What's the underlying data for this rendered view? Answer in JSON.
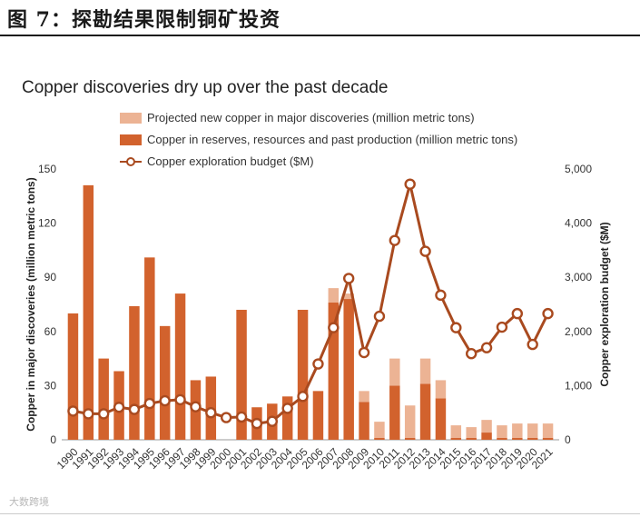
{
  "figure_title": "图 7：探勘结果限制铜矿投资",
  "watermark": "大数跨境",
  "colors": {
    "bar_solid": "#d2622d",
    "bar_projected": "#ecb394",
    "line": "#a94a1f",
    "marker_fill": "#ffffff"
  },
  "chart_data": {
    "type": "bar+line",
    "title": "Copper discoveries dry up over the past decade",
    "categories": [
      "1990",
      "1991",
      "1992",
      "1993",
      "1994",
      "1995",
      "1996",
      "1997",
      "1998",
      "1999",
      "2000",
      "2001",
      "2002",
      "2003",
      "2004",
      "2005",
      "2006",
      "2007",
      "2008",
      "2009",
      "2010",
      "2011",
      "2012",
      "2013",
      "2014",
      "2015",
      "2016",
      "2017",
      "2018",
      "2019",
      "2020",
      "2021"
    ],
    "series": [
      {
        "name": "Copper in reserves, resources and past production (million metric tons)",
        "kind": "bar",
        "axis": "left",
        "values": [
          70,
          141,
          45,
          38,
          74,
          101,
          63,
          81,
          33,
          35,
          0,
          72,
          18,
          20,
          24,
          72,
          27,
          76,
          78,
          21,
          1,
          30,
          1,
          31,
          23,
          1,
          1,
          4,
          1,
          1,
          1,
          1
        ]
      },
      {
        "name": "Projected new copper in major discoveries (million metric tons)",
        "kind": "stacked-bar",
        "axis": "left",
        "values": [
          0,
          0,
          0,
          0,
          0,
          0,
          0,
          0,
          0,
          0,
          0,
          0,
          0,
          0,
          0,
          0,
          0,
          8,
          3,
          6,
          9,
          15,
          18,
          14,
          10,
          7,
          6,
          7,
          7,
          8,
          8,
          8
        ]
      },
      {
        "name": "Copper exploration budget ($M)",
        "kind": "line",
        "axis": "right",
        "values": [
          530,
          480,
          480,
          600,
          560,
          670,
          720,
          740,
          610,
          500,
          410,
          420,
          300,
          340,
          580,
          800,
          1400,
          2070,
          2980,
          1610,
          2280,
          3680,
          4720,
          3480,
          2670,
          2070,
          1590,
          1700,
          2080,
          2330,
          1760,
          2330
        ]
      }
    ],
    "y_left": {
      "label": "Copper in major discoveries (million metric tons)",
      "range": [
        0,
        150
      ],
      "ticks": [
        0,
        30,
        60,
        90,
        120,
        150
      ],
      "tick_labels": [
        "0",
        "30",
        "60",
        "90",
        "120",
        "150"
      ]
    },
    "y_right": {
      "label": "Copper exploration budget ($M)",
      "range": [
        0,
        5000
      ],
      "ticks": [
        0,
        1000,
        2000,
        3000,
        4000,
        5000
      ],
      "tick_labels": [
        "0",
        "1,000",
        "2,000",
        "3,000",
        "4,000",
        "5,000"
      ]
    },
    "legend": {
      "position": "top-left",
      "items": [
        {
          "label": "Projected new copper in major discoveries (million metric tons)",
          "type": "swatch",
          "color_key": "bar_projected"
        },
        {
          "label": "Copper in reserves, resources and past production (million metric tons)",
          "type": "swatch",
          "color_key": "bar_solid"
        },
        {
          "label": "Copper exploration budget ($M)",
          "type": "line-marker",
          "color_key": "line"
        }
      ]
    },
    "grid": false
  }
}
